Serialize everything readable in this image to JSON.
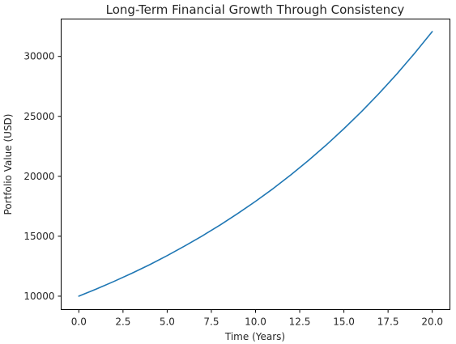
{
  "chart_data": {
    "type": "line",
    "title": "Long-Term Financial Growth Through Consistency",
    "xlabel": "Time (Years)",
    "ylabel": "Portfolio Value (USD)",
    "xlim": [
      -1.0,
      21.0
    ],
    "ylim": [
      8880,
      33120
    ],
    "grid": false,
    "x_ticks": [
      0.0,
      2.5,
      5.0,
      7.5,
      10.0,
      12.5,
      15.0,
      17.5,
      20.0
    ],
    "x_tick_labels": [
      "0.0",
      "2.5",
      "5.0",
      "7.5",
      "10.0",
      "12.5",
      "15.0",
      "17.5",
      "20.0"
    ],
    "y_ticks": [
      10000,
      15000,
      20000,
      25000,
      30000
    ],
    "y_tick_labels": [
      "10000",
      "15000",
      "20000",
      "25000",
      "30000"
    ],
    "series": [
      {
        "color": "#1f77b4",
        "x": [
          0,
          1,
          2,
          3,
          4,
          5,
          6,
          7,
          8,
          9,
          10,
          11,
          12,
          13,
          14,
          15,
          16,
          17,
          18,
          19,
          20
        ],
        "values": [
          10000,
          10600,
          11240,
          11910,
          12620,
          13380,
          14190,
          15040,
          15940,
          16900,
          17910,
          18980,
          20120,
          21330,
          22610,
          23970,
          25400,
          26930,
          28540,
          30260,
          32070
        ]
      }
    ]
  }
}
